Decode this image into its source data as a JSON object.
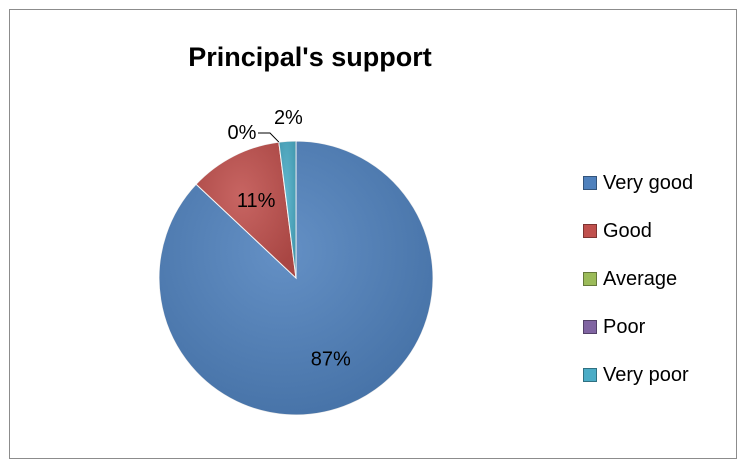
{
  "chart_data": {
    "type": "pie",
    "title": "Principal's support",
    "categories": [
      "Very good",
      "Good",
      "Average",
      "Poor",
      "Very poor"
    ],
    "values": [
      87,
      11,
      0,
      0,
      2
    ],
    "labels": [
      "87%",
      "11%",
      "0%",
      "",
      "2%"
    ],
    "colors": [
      "#4f81bd",
      "#c0504d",
      "#9bbb59",
      "#8064a2",
      "#4bacc6"
    ],
    "legend": "right"
  }
}
